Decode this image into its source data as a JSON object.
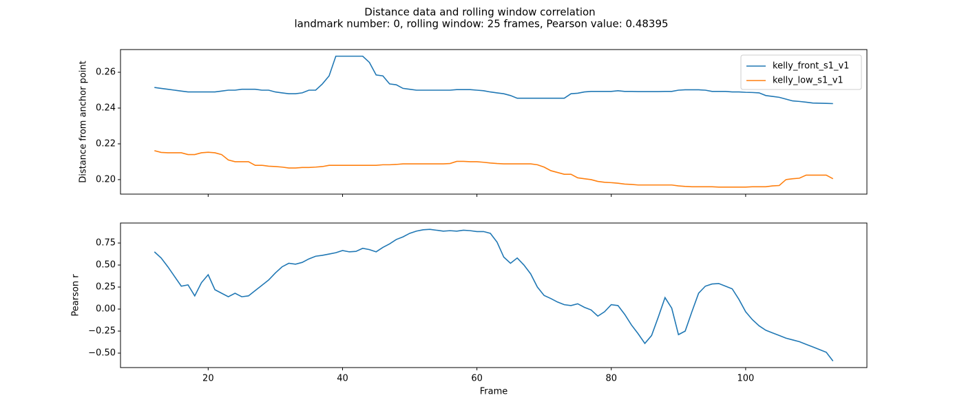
{
  "title": "Distance data and rolling window correlation",
  "subtitle": "landmark number: 0, rolling window: 25 frames, Pearson value: 0.48395",
  "chart_data": [
    {
      "type": "line",
      "ylabel": "Distance from anchor point",
      "legend": "upper right",
      "x": [
        12,
        13,
        14,
        15,
        16,
        17,
        18,
        19,
        20,
        21,
        22,
        23,
        24,
        25,
        26,
        27,
        28,
        29,
        30,
        31,
        32,
        33,
        34,
        35,
        36,
        37,
        38,
        39,
        40,
        41,
        42,
        43,
        44,
        45,
        46,
        47,
        48,
        49,
        50,
        51,
        52,
        53,
        54,
        55,
        56,
        57,
        58,
        59,
        60,
        61,
        62,
        63,
        64,
        65,
        66,
        67,
        68,
        69,
        70,
        71,
        72,
        73,
        74,
        75,
        76,
        77,
        78,
        79,
        80,
        81,
        82,
        83,
        84,
        85,
        86,
        87,
        88,
        89,
        90,
        91,
        92,
        93,
        94,
        95,
        96,
        97,
        98,
        99,
        100,
        101,
        102,
        103,
        104,
        105,
        106,
        107,
        108,
        109,
        110,
        111,
        112,
        113
      ],
      "series": [
        {
          "name": "kelly_front_s1_v1",
          "color": "#1f77b4",
          "values": [
            0.2515,
            0.251,
            0.2505,
            0.25,
            0.2495,
            0.249,
            0.249,
            0.249,
            0.249,
            0.249,
            0.2495,
            0.25,
            0.25,
            0.2505,
            0.2505,
            0.2505,
            0.25,
            0.25,
            0.249,
            0.2485,
            0.248,
            0.248,
            0.2485,
            0.25,
            0.25,
            0.2535,
            0.258,
            0.269,
            0.269,
            0.269,
            0.269,
            0.269,
            0.2655,
            0.2585,
            0.258,
            0.2535,
            0.253,
            0.251,
            0.2505,
            0.25,
            0.25,
            0.25,
            0.25,
            0.25,
            0.25,
            0.2503,
            0.2503,
            0.2503,
            0.25,
            0.2497,
            0.249,
            0.2485,
            0.248,
            0.247,
            0.2455,
            0.2455,
            0.2455,
            0.2455,
            0.2455,
            0.2455,
            0.2455,
            0.2455,
            0.248,
            0.2483,
            0.249,
            0.2493,
            0.2493,
            0.2493,
            0.2493,
            0.2497,
            0.2493,
            0.2493,
            0.2492,
            0.2492,
            0.2492,
            0.2492,
            0.2493,
            0.2493,
            0.25,
            0.2502,
            0.2502,
            0.2502,
            0.25,
            0.2493,
            0.2493,
            0.2493,
            0.249,
            0.249,
            0.2488,
            0.2487,
            0.2485,
            0.247,
            0.2465,
            0.246,
            0.245,
            0.244,
            0.2437,
            0.2433,
            0.2428,
            0.2427,
            0.2426,
            0.2425
          ]
        },
        {
          "name": "kelly_low_s1_v1",
          "color": "#ff7f0e",
          "values": [
            0.2162,
            0.2152,
            0.215,
            0.215,
            0.215,
            0.214,
            0.214,
            0.215,
            0.2153,
            0.215,
            0.214,
            0.211,
            0.21,
            0.21,
            0.21,
            0.208,
            0.208,
            0.2075,
            0.2073,
            0.207,
            0.2065,
            0.2065,
            0.2068,
            0.2068,
            0.207,
            0.2073,
            0.208,
            0.208,
            0.208,
            0.208,
            0.208,
            0.208,
            0.208,
            0.208,
            0.2083,
            0.2083,
            0.2085,
            0.2088,
            0.2088,
            0.2088,
            0.2088,
            0.2088,
            0.2088,
            0.2088,
            0.209,
            0.2102,
            0.2102,
            0.21,
            0.21,
            0.2097,
            0.2093,
            0.209,
            0.2088,
            0.2088,
            0.2088,
            0.2088,
            0.2088,
            0.2083,
            0.207,
            0.205,
            0.204,
            0.203,
            0.203,
            0.201,
            0.2005,
            0.2,
            0.199,
            0.1985,
            0.1983,
            0.198,
            0.1975,
            0.1973,
            0.197,
            0.197,
            0.197,
            0.197,
            0.197,
            0.197,
            0.1965,
            0.1962,
            0.196,
            0.196,
            0.196,
            0.196,
            0.1958,
            0.1958,
            0.1958,
            0.1958,
            0.1958,
            0.196,
            0.196,
            0.196,
            0.1965,
            0.1967,
            0.2,
            0.2005,
            0.2008,
            0.2025,
            0.2025,
            0.2025,
            0.2025,
            0.2005
          ]
        }
      ],
      "xlim": [
        6.95,
        118.05
      ],
      "ylim": [
        0.1919,
        0.2727
      ],
      "yticks": [
        {
          "value": 0.2,
          "label": "0.20"
        },
        0.22,
        0.24,
        0.26
      ]
    },
    {
      "type": "line",
      "xlabel": "Frame",
      "ylabel": "Pearson r",
      "x": [
        12,
        13,
        14,
        15,
        16,
        17,
        18,
        19,
        20,
        21,
        22,
        23,
        24,
        25,
        26,
        27,
        28,
        29,
        30,
        31,
        32,
        33,
        34,
        35,
        36,
        37,
        38,
        39,
        40,
        41,
        42,
        43,
        44,
        45,
        46,
        47,
        48,
        49,
        50,
        51,
        52,
        53,
        54,
        55,
        56,
        57,
        58,
        59,
        60,
        61,
        62,
        63,
        64,
        65,
        66,
        67,
        68,
        69,
        70,
        71,
        72,
        73,
        74,
        75,
        76,
        77,
        78,
        79,
        80,
        81,
        82,
        83,
        84,
        85,
        86,
        87,
        88,
        89,
        90,
        91,
        92,
        93,
        94,
        95,
        96,
        97,
        98,
        99,
        100,
        101,
        102,
        103,
        104,
        105,
        106,
        107,
        108,
        109,
        110,
        111,
        112,
        113
      ],
      "series": [
        {
          "name": "Pearson r",
          "color": "#1f77b4",
          "values": [
            0.65,
            0.58,
            0.48,
            0.37,
            0.26,
            0.275,
            0.15,
            0.3,
            0.39,
            0.22,
            0.18,
            0.14,
            0.18,
            0.14,
            0.15,
            0.21,
            0.27,
            0.33,
            0.41,
            0.48,
            0.52,
            0.51,
            0.53,
            0.57,
            0.6,
            0.61,
            0.625,
            0.64,
            0.665,
            0.65,
            0.655,
            0.69,
            0.675,
            0.65,
            0.7,
            0.74,
            0.79,
            0.82,
            0.86,
            0.885,
            0.9,
            0.905,
            0.895,
            0.885,
            0.89,
            0.885,
            0.895,
            0.89,
            0.88,
            0.88,
            0.86,
            0.76,
            0.59,
            0.52,
            0.58,
            0.5,
            0.4,
            0.25,
            0.155,
            0.12,
            0.08,
            0.05,
            0.04,
            0.06,
            0.02,
            -0.01,
            -0.08,
            -0.03,
            0.05,
            0.04,
            -0.06,
            -0.18,
            -0.28,
            -0.39,
            -0.3,
            -0.09,
            0.13,
            0.01,
            -0.29,
            -0.25,
            -0.03,
            0.18,
            0.26,
            0.285,
            0.29,
            0.26,
            0.23,
            0.11,
            -0.03,
            -0.12,
            -0.19,
            -0.24,
            -0.27,
            -0.3,
            -0.33,
            -0.35,
            -0.37,
            -0.4,
            -0.43,
            -0.46,
            -0.49,
            -0.59
          ]
        }
      ],
      "xlim": [
        6.95,
        118.05
      ],
      "ylim": [
        -0.664,
        0.977
      ],
      "xticks": [
        20,
        40,
        60,
        80,
        100
      ],
      "yticks": [
        {
          "value": -0.5,
          "label": "−0.50"
        },
        {
          "value": -0.25,
          "label": "−0.25"
        },
        {
          "value": 0,
          "label": "0.00"
        },
        {
          "value": 0.25,
          "label": "0.25"
        },
        {
          "value": 0.5,
          "label": "0.50"
        },
        {
          "value": 0.75,
          "label": "0.75"
        }
      ]
    }
  ]
}
